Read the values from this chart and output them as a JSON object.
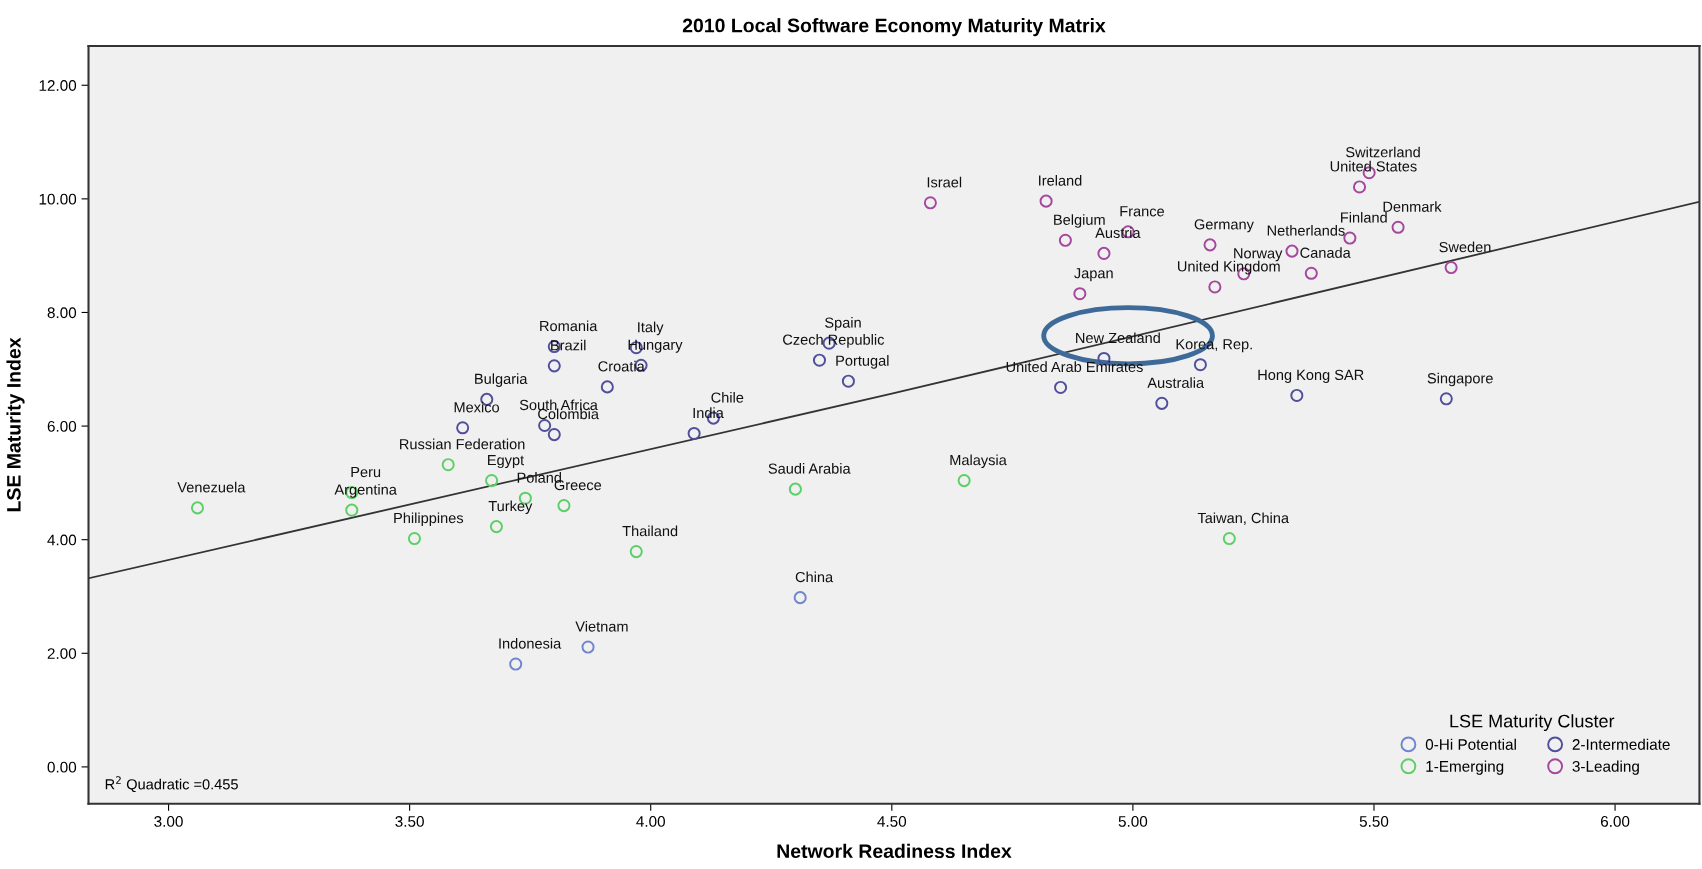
{
  "chart_data": {
    "type": "scatter",
    "title": "2010 Local Software Economy Maturity Matrix",
    "xlabel": "Network Readiness Index",
    "ylabel": "LSE Maturity Index",
    "legend_title": "LSE Maturity Cluster",
    "legend": "bottom right",
    "marker": "circle",
    "grid": false,
    "xlim": [
      2.834,
      6.175
    ],
    "ylim": [
      -0.65,
      12.69
    ],
    "xticks": [
      {
        "value": 3,
        "label": "3.00"
      },
      {
        "value": 3.5,
        "label": "3.50"
      },
      {
        "value": 4,
        "label": "4.00"
      },
      {
        "value": 4.5,
        "label": "4.50"
      },
      {
        "value": 5,
        "label": "5.00"
      },
      {
        "value": 5.5,
        "label": "5.50"
      },
      {
        "value": 6,
        "label": "6.00"
      }
    ],
    "yticks": [
      {
        "value": 0,
        "label": "0.00"
      },
      {
        "value": 2,
        "label": "2.00"
      },
      {
        "value": 4,
        "label": "4.00"
      },
      {
        "value": 6,
        "label": "6.00"
      },
      {
        "value": 8,
        "label": "8.00"
      },
      {
        "value": 10,
        "label": "10.00"
      },
      {
        "value": 12,
        "label": "12.00"
      }
    ],
    "annotations": [
      "R$^{2}$ Quadratic =0.455"
    ],
    "series": [
      {
        "name": "0-Hi Potential",
        "color": "#6f86cf",
        "x": [
          4.31,
          3.72,
          3.87
        ],
        "values": [
          2.98,
          1.81,
          2.11
        ],
        "value_labels": [
          "China",
          "Indonesia",
          "Vietnam"
        ]
      },
      {
        "name": "1-Emerging",
        "color": "#5ccf66",
        "x": [
          3.06,
          3.38,
          3.38,
          3.51,
          3.58,
          3.67,
          3.74,
          3.68,
          3.82,
          4.3,
          4.65,
          3.97,
          5.2
        ],
        "values": [
          4.56,
          4.83,
          4.52,
          4.02,
          5.32,
          5.04,
          4.73,
          4.23,
          4.6,
          4.89,
          5.04,
          3.79,
          4.02
        ],
        "value_labels": [
          "Venezuela",
          "Peru",
          "Argentina",
          "Philippines",
          "Russian Federation",
          "Egypt",
          "Poland",
          "Turkey",
          "Greece",
          "Saudi Arabia",
          "Malaysia",
          "Thailand",
          "Taiwan, China"
        ]
      },
      {
        "name": "2-Intermediate",
        "color": "#4f4f9c",
        "x": [
          3.61,
          3.66,
          3.78,
          3.8,
          3.8,
          3.8,
          3.97,
          3.98,
          3.91,
          4.09,
          4.13,
          4.35,
          4.37,
          4.41,
          4.94,
          4.85,
          5.14,
          5.06,
          5.34,
          5.65
        ],
        "values": [
          5.97,
          6.47,
          6.01,
          5.85,
          7.06,
          7.4,
          7.38,
          7.07,
          6.69,
          5.87,
          6.14,
          7.16,
          7.46,
          6.79,
          7.19,
          6.68,
          7.08,
          6.4,
          6.54,
          6.48
        ],
        "value_labels": [
          "Mexico",
          "Bulgaria",
          "South Africa",
          "Colombia",
          "Brazil",
          "Romania",
          "Italy",
          "Hungary",
          "Croatia",
          "India",
          "Chile",
          "Czech Republic",
          "Spain",
          "Portugal",
          "New Zealand",
          "United Arab Emirates",
          "Korea, Rep.",
          "Australia",
          "Hong Kong SAR",
          "Singapore"
        ]
      },
      {
        "name": "3-Leading",
        "color": "#a5479d",
        "x": [
          4.58,
          4.82,
          4.86,
          4.94,
          4.99,
          4.89,
          5.16,
          5.33,
          5.23,
          5.17,
          5.37,
          5.45,
          5.55,
          5.49,
          5.47,
          5.66
        ],
        "values": [
          9.93,
          9.96,
          9.27,
          9.04,
          9.42,
          8.33,
          9.19,
          9.08,
          8.68,
          8.45,
          8.69,
          9.31,
          9.5,
          10.46,
          10.21,
          8.79
        ],
        "value_labels": [
          "Israel",
          "Ireland",
          "Belgium",
          "Austria",
          "France",
          "Japan",
          "Germany",
          "Netherlands",
          "Norway",
          "United Kingdom",
          "Canada",
          "Finland",
          "Denmark",
          "Switzerland",
          "United States",
          "Sweden"
        ]
      },
      {
        "type": "line",
        "color": "#333333",
        "marker": "none",
        "line_style": "solid",
        "x": [
          2.834,
          4.5,
          6.175
        ],
        "values": [
          3.32,
          6.57,
          9.95
        ]
      }
    ]
  }
}
